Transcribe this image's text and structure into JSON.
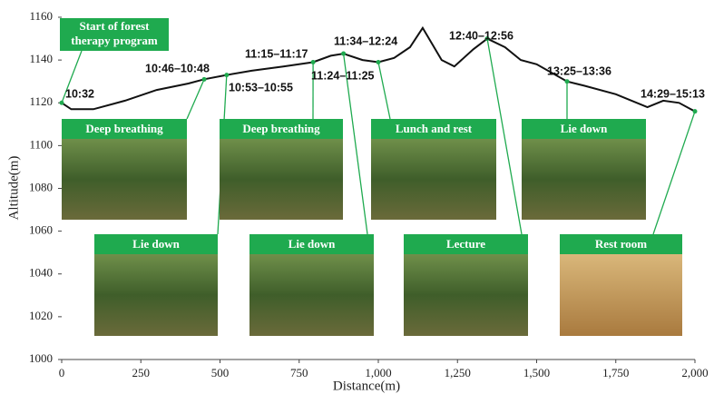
{
  "chart_data": {
    "type": "line",
    "x_label": "Distance(m)",
    "y_label": "Altitude(m)",
    "xlim": [
      0,
      2000
    ],
    "ylim": [
      1000,
      1160
    ],
    "xticks": [
      0,
      250,
      500,
      750,
      {
        "value": 1000,
        "label": "1,000"
      },
      {
        "value": 1250,
        "label": "1,250"
      },
      {
        "value": 1500,
        "label": "1,500"
      },
      {
        "value": 1750,
        "label": "1,750"
      },
      {
        "value": 2000,
        "label": "2,000"
      }
    ],
    "yticks": [
      1000,
      1020,
      1040,
      1060,
      1080,
      1100,
      1120,
      1140,
      1160
    ],
    "color": "#111111",
    "x": [
      0,
      30,
      100,
      200,
      300,
      400,
      450,
      521,
      600,
      700,
      794,
      850,
      890,
      950,
      1000,
      1050,
      1100,
      1140,
      1200,
      1240,
      1300,
      1344,
      1400,
      1450,
      1500,
      1596,
      1650,
      1750,
      1850,
      1900,
      1950,
      2000
    ],
    "values": [
      1120,
      1117,
      1117,
      1121,
      1126,
      1129,
      1131,
      1133,
      1135,
      1137,
      1139,
      1142,
      1143,
      1140,
      1139,
      1141,
      1146,
      1155,
      1140,
      1137,
      1145,
      1150,
      1146,
      1140,
      1138,
      1130,
      1128,
      1124,
      1118,
      1121,
      1120,
      1116
    ],
    "annotations": [
      {
        "label": "10:32",
        "x": 0,
        "y": 1120
      },
      {
        "label": "10:46–10:48",
        "x": 450,
        "y": 1131
      },
      {
        "label": "10:53–10:55",
        "x": 521,
        "y": 1133
      },
      {
        "label": "11:15–11:17",
        "x": 794,
        "y": 1139
      },
      {
        "label": "11:24–11:25",
        "x": 890,
        "y": 1143
      },
      {
        "label": "11:34–12:24",
        "x": 1000,
        "y": 1139
      },
      {
        "label": "12:40–12:56",
        "x": 1344,
        "y": 1150
      },
      {
        "label": "13:25–13:36",
        "x": 1596,
        "y": 1130
      },
      {
        "label": "14:29–15:13",
        "x": 2000,
        "y": 1116
      }
    ],
    "start_label": [
      "Start of forest",
      "therapy program"
    ],
    "photo_color": "#1faa4f",
    "photos": [
      "Deep breathing",
      "Lie down",
      "Deep breathing",
      "Lie down",
      "Lunch and rest",
      "Lecture",
      "Lie down",
      "Rest room"
    ]
  }
}
